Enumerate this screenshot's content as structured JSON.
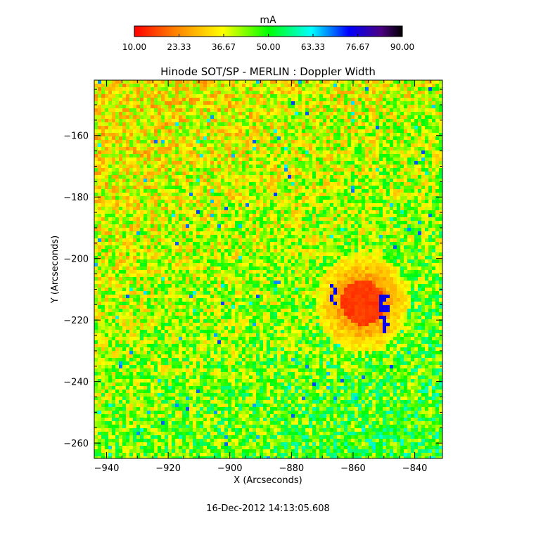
{
  "colorbar": {
    "unit": "mA",
    "min": 10.0,
    "max": 90.0,
    "tick_labels": [
      "10.00",
      "23.33",
      "36.67",
      "50.00",
      "63.33",
      "76.67",
      "90.00"
    ],
    "colormap": [
      "#ff0000",
      "#ff7f00",
      "#ffff00",
      "#00ff00",
      "#00ffff",
      "#0000ff",
      "#4b0082",
      "#000000"
    ]
  },
  "plot": {
    "title": "Hinode SOT/SP - MERLIN : Doppler Width",
    "xlabel": "X (Arcseconds)",
    "ylabel": "Y (Arcseconds)",
    "xlim": [
      -944,
      -831
    ],
    "ylim": [
      -265,
      -142
    ],
    "x_tick_labels": [
      "−940",
      "−920",
      "−900",
      "−880",
      "−860",
      "−840"
    ],
    "y_tick_labels": [
      "−160",
      "−180",
      "−200",
      "−220",
      "−240",
      "−260"
    ]
  },
  "timestamp": "16-Dec-2012 14:13:05.608"
}
